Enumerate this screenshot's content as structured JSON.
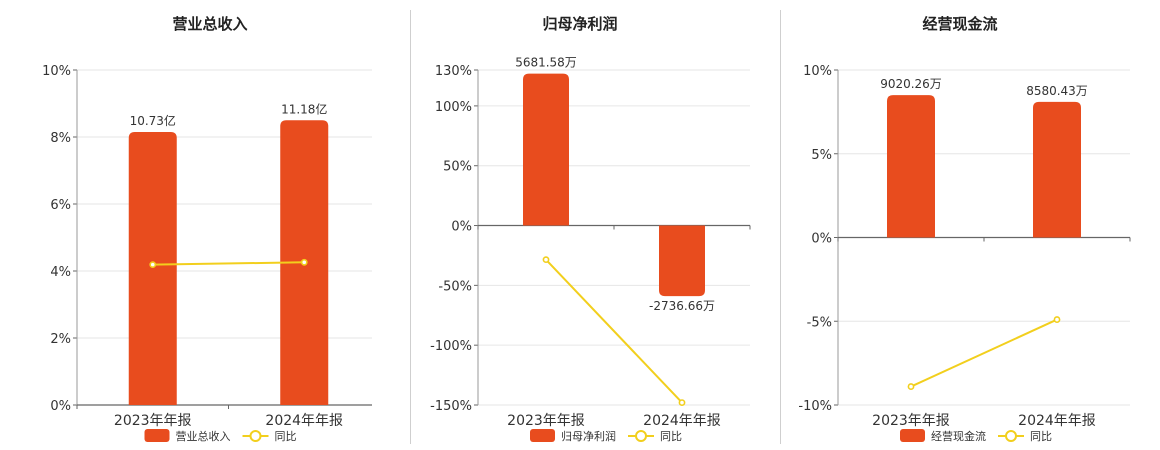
{
  "colors": {
    "bar": "#e84c1e",
    "line": "#f2cf1d",
    "grid": "#e6e6e6",
    "axis": "#666666",
    "text": "#333333"
  },
  "chart_data": [
    {
      "type": "bar",
      "title": "营业总收入",
      "categories": [
        "2023年年报",
        "2024年年报"
      ],
      "bar_labels": [
        "10.73亿",
        "11.18亿"
      ],
      "bar_values": [
        8.15,
        8.5
      ],
      "yoy_values": [
        4.19,
        4.26
      ],
      "yticks": [
        "10%",
        "8%",
        "6%",
        "4%",
        "2%",
        "0%"
      ],
      "ylim": [
        0,
        10
      ],
      "legend": [
        "营业总收入",
        "同比"
      ]
    },
    {
      "type": "bar",
      "title": "归母净利润",
      "categories": [
        "2023年年报",
        "2024年年报"
      ],
      "bar_labels": [
        "5681.58万",
        "-2736.66万"
      ],
      "bar_values": [
        127,
        -59
      ],
      "yoy_values": [
        -28.5,
        -148
      ],
      "yticks": [
        "130%",
        "100%",
        "50%",
        "0%",
        "-50%",
        "-100%",
        "-150%"
      ],
      "ylim": [
        -150,
        130
      ],
      "legend": [
        "归母净利润",
        "同比"
      ]
    },
    {
      "type": "bar",
      "title": "经营现金流",
      "categories": [
        "2023年年报",
        "2024年年报"
      ],
      "bar_labels": [
        "9020.26万",
        "8580.43万"
      ],
      "bar_values": [
        8.5,
        8.1
      ],
      "yoy_values": [
        -8.9,
        -4.9
      ],
      "yticks": [
        "10%",
        "5%",
        "0%",
        "-5%",
        "-10%"
      ],
      "ylim": [
        -10,
        10
      ],
      "legend": [
        "经营现金流",
        "同比"
      ]
    }
  ]
}
